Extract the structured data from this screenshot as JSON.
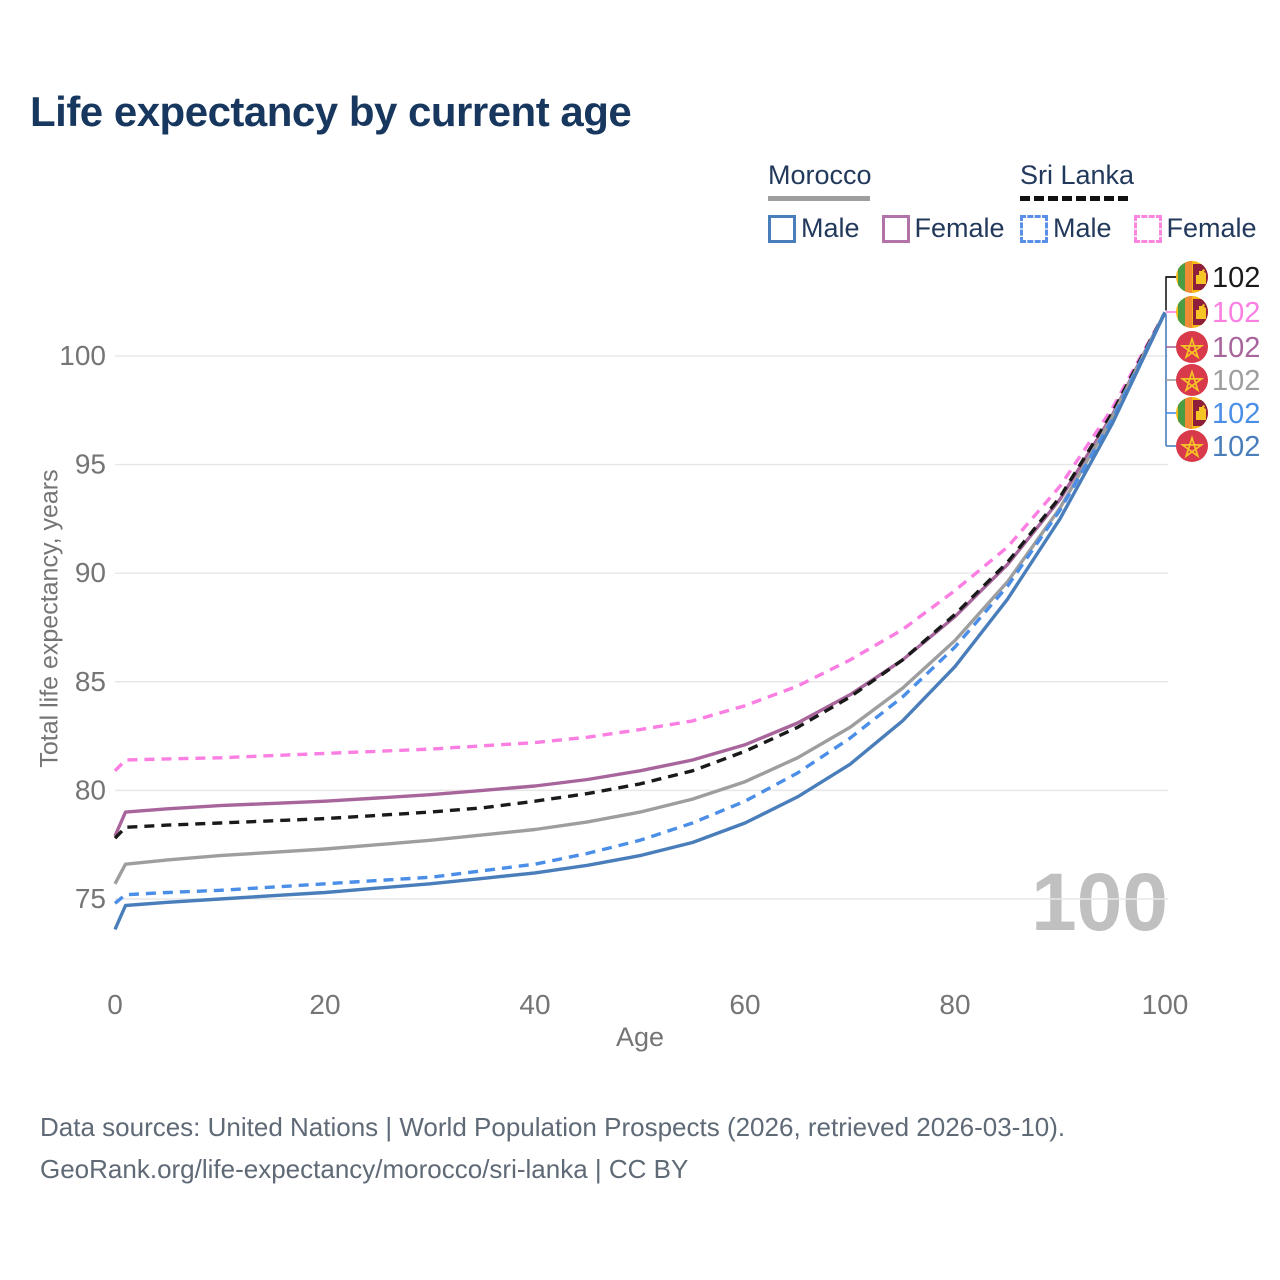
{
  "title": "Life expectancy by current age",
  "legend": {
    "morocco": {
      "title": "Morocco",
      "style": "solid",
      "underline_color": "#9e9e9e",
      "male_label": "Male",
      "female_label": "Female",
      "male_color": "#4a7ebb",
      "female_color": "#b273a9"
    },
    "sri_lanka": {
      "title": "Sri Lanka",
      "style": "dashed",
      "underline_color": "#111111",
      "male_label": "Male",
      "female_label": "Female",
      "male_color": "#5a8fe8",
      "female_color": "#fb86e2"
    }
  },
  "chart_data": {
    "type": "line",
    "title": "Life expectancy by current age",
    "xlabel": "Age",
    "ylabel": "Total life expectancy, years",
    "x_ticks": [
      0,
      20,
      40,
      60,
      80,
      100
    ],
    "y_ticks": [
      75,
      80,
      85,
      90,
      95,
      100
    ],
    "xlim": [
      0,
      100
    ],
    "ylim": [
      73,
      103.5
    ],
    "grid": "horizontal-only",
    "ages": [
      0,
      1,
      5,
      10,
      15,
      20,
      25,
      30,
      35,
      40,
      45,
      50,
      55,
      60,
      65,
      70,
      75,
      80,
      85,
      90,
      95,
      100
    ],
    "series": [
      {
        "name": "Sri Lanka Female",
        "country": "Sri Lanka",
        "sex": "Female",
        "color": "#fb7ee3",
        "dash": "dashed",
        "values": [
          80.9,
          81.4,
          81.45,
          81.5,
          81.6,
          81.7,
          81.8,
          81.9,
          82.05,
          82.2,
          82.45,
          82.8,
          83.2,
          83.9,
          84.8,
          86.0,
          87.4,
          89.2,
          91.2,
          94.0,
          97.6,
          102
        ]
      },
      {
        "name": "Morocco Female",
        "country": "Morocco",
        "sex": "Female",
        "color": "#a8659c",
        "dash": "solid",
        "values": [
          77.9,
          79.0,
          79.15,
          79.3,
          79.4,
          79.5,
          79.65,
          79.8,
          80.0,
          80.2,
          80.5,
          80.9,
          81.4,
          82.1,
          83.1,
          84.4,
          86.0,
          88.0,
          90.4,
          93.4,
          97.3,
          102
        ]
      },
      {
        "name": "Sri Lanka",
        "country": "Sri Lanka",
        "sex": "Both",
        "color": "#1a1a1a",
        "dash": "dashed",
        "values": [
          77.8,
          78.3,
          78.4,
          78.5,
          78.6,
          78.7,
          78.85,
          79.0,
          79.2,
          79.5,
          79.85,
          80.3,
          80.9,
          81.8,
          82.9,
          84.3,
          86.0,
          88.1,
          90.5,
          93.5,
          97.4,
          102
        ]
      },
      {
        "name": "Morocco",
        "country": "Morocco",
        "sex": "Both",
        "color": "#9e9e9e",
        "dash": "solid",
        "values": [
          75.7,
          76.6,
          76.8,
          77.0,
          77.15,
          77.3,
          77.5,
          77.7,
          77.95,
          78.2,
          78.55,
          79.0,
          79.6,
          80.4,
          81.5,
          82.9,
          84.7,
          86.9,
          89.6,
          93.0,
          97.2,
          102
        ]
      },
      {
        "name": "Sri Lanka Male",
        "country": "Sri Lanka",
        "sex": "Male",
        "color": "#4a8ee8",
        "dash": "dashed",
        "values": [
          74.8,
          75.2,
          75.3,
          75.4,
          75.55,
          75.7,
          75.85,
          76.0,
          76.3,
          76.6,
          77.1,
          77.7,
          78.5,
          79.5,
          80.8,
          82.4,
          84.3,
          86.6,
          89.4,
          92.9,
          97.1,
          102
        ]
      },
      {
        "name": "Morocco Male",
        "country": "Morocco",
        "sex": "Male",
        "color": "#4a7ebb",
        "dash": "solid",
        "values": [
          73.6,
          74.7,
          74.85,
          75.0,
          75.15,
          75.3,
          75.5,
          75.7,
          75.95,
          76.2,
          76.55,
          77.0,
          77.6,
          78.5,
          79.7,
          81.2,
          83.2,
          85.7,
          88.8,
          92.5,
          96.9,
          102
        ]
      }
    ],
    "end_labels": [
      {
        "series": "Sri Lanka",
        "icon": "sri-lanka-flag-icon",
        "flag": "sri-lanka",
        "value": "102",
        "color": "#1a1a1a"
      },
      {
        "series": "Sri Lanka Female",
        "icon": "sri-lanka-flag-icon",
        "flag": "sri-lanka",
        "value": "102",
        "color": "#fb7ee3"
      },
      {
        "series": "Morocco Female",
        "icon": "morocco-flag-icon",
        "flag": "morocco",
        "value": "102",
        "color": "#a8659c"
      },
      {
        "series": "Morocco",
        "icon": "morocco-flag-icon",
        "flag": "morocco",
        "value": "102",
        "color": "#9e9e9e"
      },
      {
        "series": "Sri Lanka Male",
        "icon": "sri-lanka-flag-icon",
        "flag": "sri-lanka",
        "value": "102",
        "color": "#4a8ee8"
      },
      {
        "series": "Morocco Male",
        "icon": "morocco-flag-icon",
        "flag": "morocco",
        "value": "102",
        "color": "#4a7ebb"
      }
    ]
  },
  "watermark": "100",
  "footer": {
    "line1": "Data sources: United Nations | World Population Prospects (2026, retrieved 2026-03-10).",
    "line2": "GeoRank.org/life-expectancy/morocco/sri-lanka | CC BY"
  },
  "colors": {
    "title_text": "#17375e",
    "legend_text": "#22395c",
    "axis_text": "#757575",
    "gridline": "#e7e7e7",
    "watermark": "#c0c0c0",
    "footer_text": "#5f6a76"
  }
}
